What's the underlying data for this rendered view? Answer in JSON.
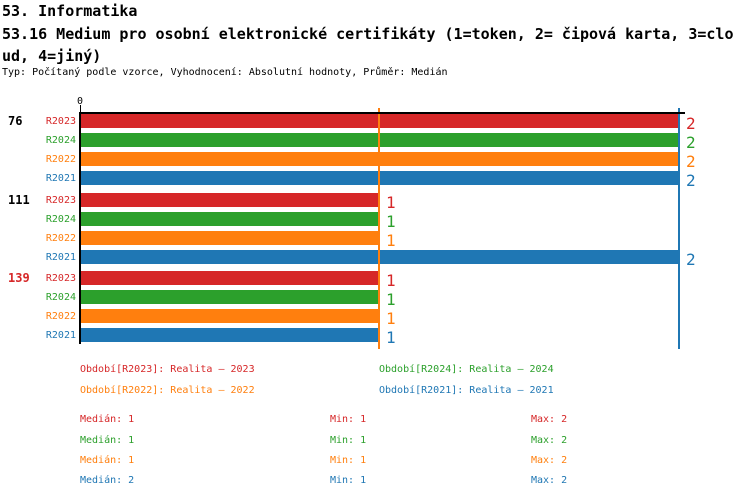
{
  "header": {
    "line1": "53. Informatika",
    "line2": "53.16 Medium pro osobní elektronické certifikáty (1=token, 2= čipová karta, 3=clo",
    "line3": "ud, 4=jiný)",
    "meta": "Typ: Počítaný podle vzorce, Vyhodnocení: Absolutní hodnoty, Průměr: Medián"
  },
  "colors": {
    "series": {
      "R2023": "#d62728",
      "R2024": "#2ca02c",
      "R2022": "#ff7f0e",
      "R2021": "#1f77b4"
    },
    "axis": "#000000",
    "text": "#000000"
  },
  "chart_data": {
    "type": "bar",
    "orientation": "horizontal",
    "title": "53.16 Medium pro osobní elektronické certifikáty (1=token, 2= čipová karta, 3=cloud, 4=jiný)",
    "x_axis": {
      "origin_label": "0",
      "xlim": [
        0,
        2
      ],
      "grid": false
    },
    "series_order": [
      "R2023",
      "R2024",
      "R2022",
      "R2021"
    ],
    "groups": [
      {
        "label": "76",
        "label_color": "#000000",
        "bars": [
          {
            "series": "R2023",
            "value": 2
          },
          {
            "series": "R2024",
            "value": 2
          },
          {
            "series": "R2022",
            "value": 2
          },
          {
            "series": "R2021",
            "value": 2
          }
        ]
      },
      {
        "label": "111",
        "label_color": "#000000",
        "bars": [
          {
            "series": "R2023",
            "value": 1
          },
          {
            "series": "R2024",
            "value": 1
          },
          {
            "series": "R2022",
            "value": 1
          },
          {
            "series": "R2021",
            "value": 2
          }
        ]
      },
      {
        "label": "139",
        "label_color": "#d62728",
        "bars": [
          {
            "series": "R2023",
            "value": 1
          },
          {
            "series": "R2024",
            "value": 1
          },
          {
            "series": "R2022",
            "value": 1
          },
          {
            "series": "R2021",
            "value": 1
          }
        ]
      }
    ],
    "median_lines": [
      {
        "series": "R2022",
        "value": 1
      },
      {
        "series": "R2021",
        "value": 2
      }
    ]
  },
  "legend": {
    "items": [
      {
        "series": "R2023",
        "text": "Období[R2023]: Realita – 2023"
      },
      {
        "series": "R2024",
        "text": "Období[R2024]: Realita – 2024"
      },
      {
        "series": "R2022",
        "text": "Období[R2022]: Realita – 2022"
      },
      {
        "series": "R2021",
        "text": "Období[R2021]: Realita – 2021"
      }
    ]
  },
  "stats": {
    "rows": [
      {
        "series": "R2023",
        "median": 1,
        "min": 1,
        "max": 2,
        "median_text": "Medián: 1",
        "min_text": "Min: 1",
        "max_text": "Max: 2"
      },
      {
        "series": "R2024",
        "median": 1,
        "min": 1,
        "max": 2,
        "median_text": "Medián: 1",
        "min_text": "Min: 1",
        "max_text": "Max: 2"
      },
      {
        "series": "R2022",
        "median": 1,
        "min": 1,
        "max": 2,
        "median_text": "Medián: 1",
        "min_text": "Min: 1",
        "max_text": "Max: 2"
      },
      {
        "series": "R2021",
        "median": 2,
        "min": 1,
        "max": 2,
        "median_text": "Medián: 2",
        "min_text": "Min: 1",
        "max_text": "Max: 2"
      }
    ]
  }
}
